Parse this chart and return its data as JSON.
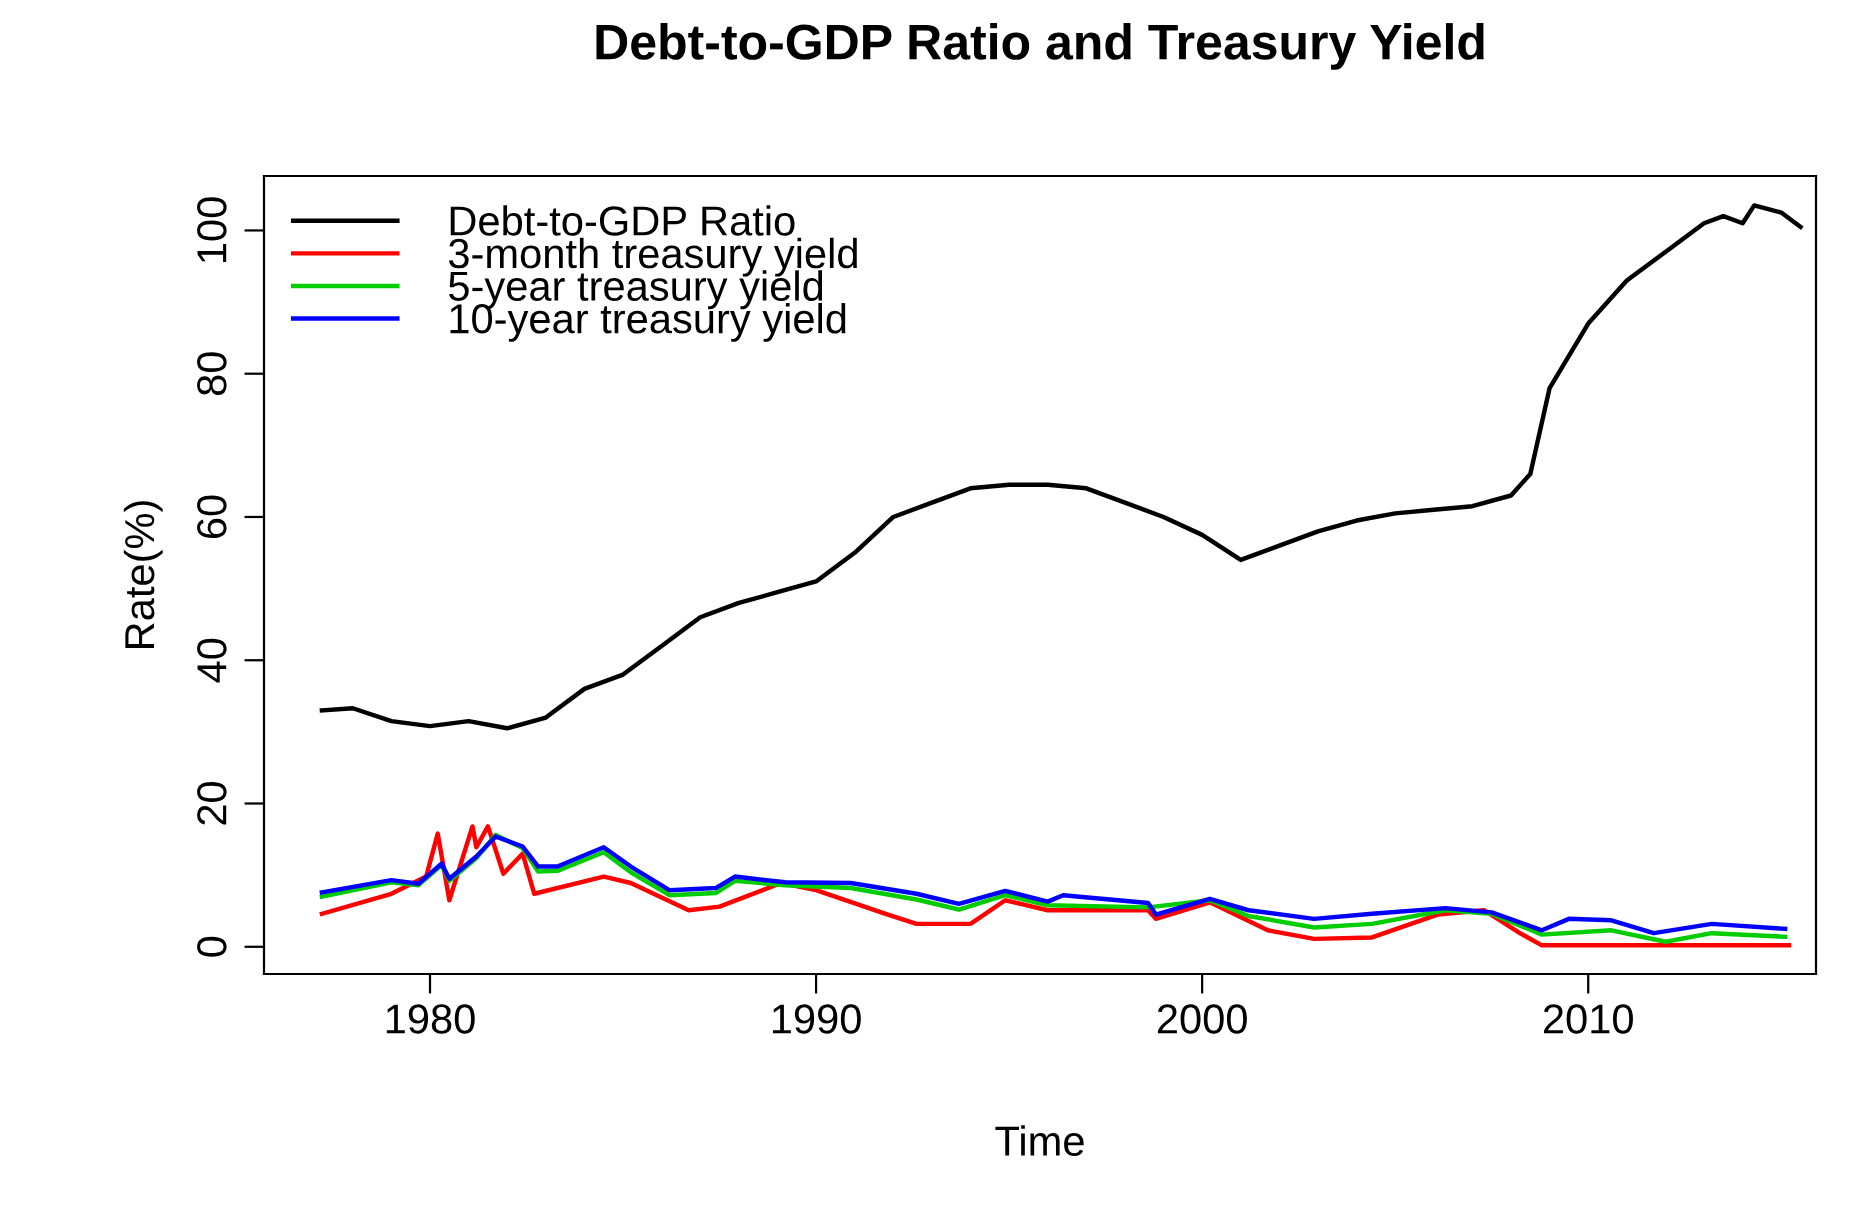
{
  "chart_data": {
    "type": "line",
    "title": "Debt-to-GDP Ratio and Treasury Yield",
    "xlabel": "Time",
    "ylabel": "Rate(%)",
    "xlim": [
      1975.7,
      2015.9
    ],
    "ylim": [
      -3.8,
      107.6
    ],
    "xticks": [
      1980,
      1990,
      2000,
      2010
    ],
    "yticks": [
      0,
      20,
      40,
      60,
      80,
      100
    ],
    "grid": false,
    "legend": "top left",
    "marker": "none",
    "line_style": "solid",
    "series": [
      {
        "name": "Debt-to-GDP Ratio",
        "color": "#000000",
        "x": [
          1977.2,
          1978,
          1979,
          1980,
          1981,
          1982,
          1983,
          1984,
          1985,
          1986,
          1987,
          1988,
          1989,
          1990,
          1991,
          1992,
          1993,
          1994,
          1995,
          1996,
          1997,
          1998,
          1999,
          2000,
          2001,
          2002,
          2003,
          2004,
          2005,
          2006,
          2007,
          2008,
          2008.5,
          2009,
          2010,
          2011,
          2012,
          2013,
          2013.5,
          2014,
          2014.3,
          2015,
          2015.5
        ],
        "values": [
          33,
          33.3,
          31.5,
          30.8,
          31.5,
          30.5,
          32,
          36,
          38,
          42,
          46,
          48,
          49.5,
          51,
          55,
          60,
          62,
          64,
          64.5,
          64.5,
          64,
          62,
          60,
          57.5,
          54,
          56,
          58,
          59.5,
          60.5,
          61,
          61.5,
          63,
          66,
          78,
          87,
          93,
          97,
          101,
          102,
          101,
          103.5,
          102.5,
          100.5
        ]
      },
      {
        "name": "3-month treasury yield",
        "color": "#ff0000",
        "x": [
          1977.2,
          1979,
          1979.9,
          1980.2,
          1980.5,
          1981.1,
          1981.2,
          1981.5,
          1981.9,
          1982.4,
          1982.7,
          1984.5,
          1985.2,
          1986.7,
          1987.5,
          1989.1,
          1990,
          1991.8,
          1992.6,
          1994,
          1994.9,
          1996,
          1998.6,
          1998.8,
          2000.2,
          2001.7,
          2002.9,
          2004.4,
          2006.1,
          2007.3,
          2008.2,
          2008.8,
          2015.2
        ],
        "values": [
          4.6,
          7.4,
          9.8,
          15.8,
          6.5,
          16.8,
          13.9,
          16.8,
          10.2,
          13,
          7.4,
          9.8,
          8.9,
          5.1,
          5.6,
          8.9,
          7.9,
          4.6,
          3.2,
          3.2,
          6.5,
          5.1,
          5.1,
          3.9,
          6.2,
          2.3,
          1.1,
          1.3,
          4.5,
          5.1,
          2,
          0.2,
          0.2
        ]
      },
      {
        "name": "5-year treasury yield",
        "color": "#00cd00",
        "x": [
          1977.2,
          1979,
          1979.7,
          1980.3,
          1980.5,
          1981.2,
          1981.7,
          1982.4,
          1982.8,
          1983.3,
          1984.5,
          1985.2,
          1986.2,
          1987.4,
          1987.9,
          1989.2,
          1990.9,
          1992.6,
          1993.7,
          1994.9,
          1996,
          1998.6,
          2000.2,
          2001.2,
          2002.9,
          2004.4,
          2006.3,
          2007.5,
          2008.8,
          2010.6,
          2012,
          2013.2,
          2015.1
        ],
        "values": [
          7,
          9,
          8.6,
          11.4,
          9.2,
          12.4,
          15.6,
          13.8,
          10.5,
          10.6,
          13.2,
          10.4,
          7.2,
          7.5,
          9.2,
          8.6,
          8.2,
          6.6,
          5.2,
          7.2,
          5.8,
          5.5,
          6.5,
          4.3,
          2.7,
          3.2,
          5.1,
          4.6,
          1.7,
          2.3,
          0.7,
          1.9,
          1.4
        ]
      },
      {
        "name": "10-year treasury yield",
        "color": "#0000ff",
        "x": [
          1977.2,
          1979,
          1979.7,
          1980.3,
          1980.5,
          1981.2,
          1981.7,
          1982.4,
          1982.8,
          1983.3,
          1984.5,
          1985.2,
          1986.2,
          1987.4,
          1987.9,
          1989.2,
          1990.9,
          1992.6,
          1993.7,
          1994.9,
          1996,
          1996.4,
          1998.6,
          1998.8,
          2000.2,
          2001.2,
          2002.9,
          2004.4,
          2006.3,
          2007.5,
          2008.8,
          2009.5,
          2010.6,
          2011.7,
          2013.2,
          2015.1
        ],
        "values": [
          7.6,
          9.3,
          8.8,
          11.6,
          9.5,
          12.6,
          15.4,
          14,
          11.2,
          11.2,
          13.9,
          11.2,
          7.9,
          8.2,
          9.8,
          9,
          8.9,
          7.4,
          6,
          7.8,
          6.3,
          7.2,
          6.1,
          4.5,
          6.7,
          5.1,
          3.9,
          4.6,
          5.4,
          4.8,
          2.3,
          3.9,
          3.7,
          1.9,
          3.2,
          2.5
        ]
      }
    ]
  }
}
